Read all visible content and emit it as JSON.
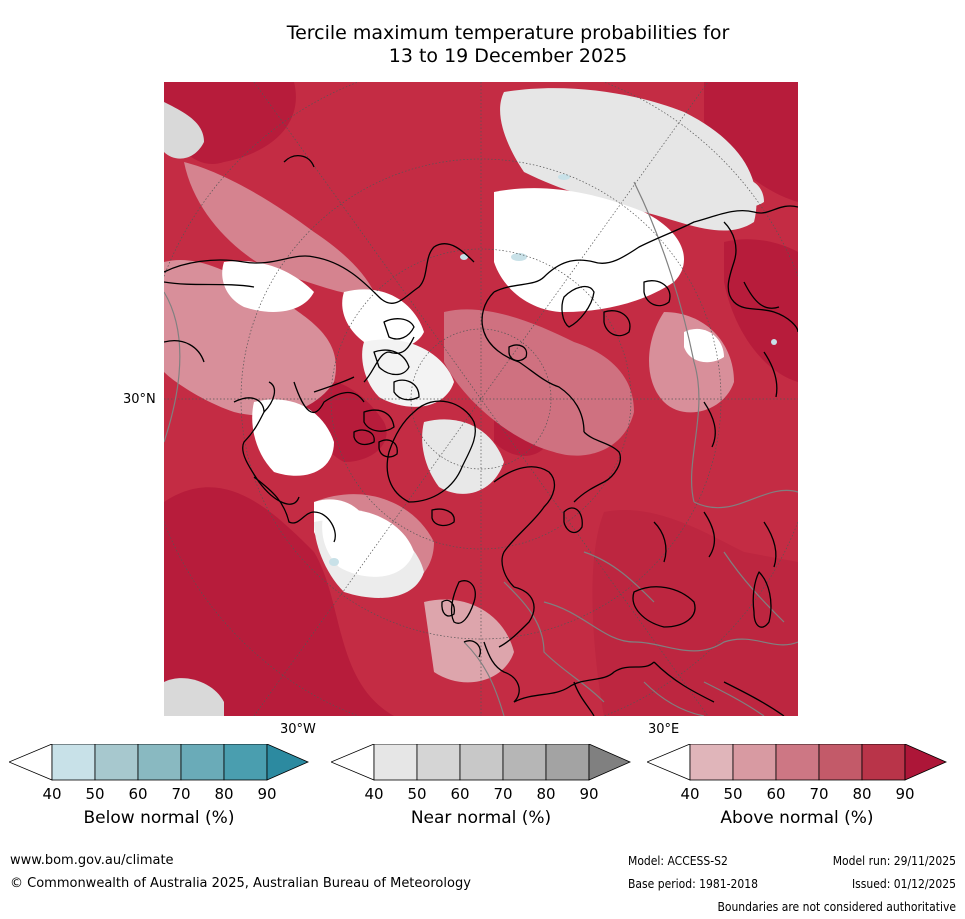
{
  "title_line1": "Tercile maximum temperature probabilities for",
  "title_line2": "13 to 19 December 2025",
  "map": {
    "lat_label": "30°N",
    "lon_labels": {
      "west": "30°W",
      "east": "30°E"
    },
    "palette": {
      "above_dark": "#b71c3b",
      "above_mid": "#c8515f",
      "above_light": "#dda5ac",
      "near": "#d9d9d9",
      "white": "#ffffff",
      "below": "#c8e1e8",
      "coast": "#000000",
      "border": "#808080"
    }
  },
  "colorbars": [
    {
      "label": "Below normal (%)",
      "ticks": [
        "40",
        "50",
        "60",
        "70",
        "80",
        "90"
      ],
      "colors": [
        "#ffffff",
        "#c8e1e8",
        "#a7c8ce",
        "#89b9c1",
        "#6aabb8",
        "#4a9eaf",
        "#2c8aa0"
      ]
    },
    {
      "label": "Near normal (%)",
      "ticks": [
        "40",
        "50",
        "60",
        "70",
        "80",
        "90"
      ],
      "colors": [
        "#ffffff",
        "#e6e6e6",
        "#d5d5d5",
        "#c8c8c8",
        "#b6b6b6",
        "#a3a3a3",
        "#808080"
      ]
    },
    {
      "label": "Above normal (%)",
      "ticks": [
        "40",
        "50",
        "60",
        "70",
        "80",
        "90"
      ],
      "colors": [
        "#ffffff",
        "#e0b5ba",
        "#d89aa2",
        "#cd7784",
        "#c35a69",
        "#b93449",
        "#ad1638"
      ]
    }
  ],
  "footer": {
    "website": "www.bom.gov.au/climate",
    "copyright": "© Commonwealth of Australia 2025, Australian Bureau of Meteorology",
    "model": "Model: ACCESS-S2",
    "model_run": "Model run: 29/11/2025",
    "base_period": "Base period: 1981-2018",
    "issued": "Issued: 01/12/2025",
    "disclaimer": "Boundaries are not considered authoritative"
  }
}
